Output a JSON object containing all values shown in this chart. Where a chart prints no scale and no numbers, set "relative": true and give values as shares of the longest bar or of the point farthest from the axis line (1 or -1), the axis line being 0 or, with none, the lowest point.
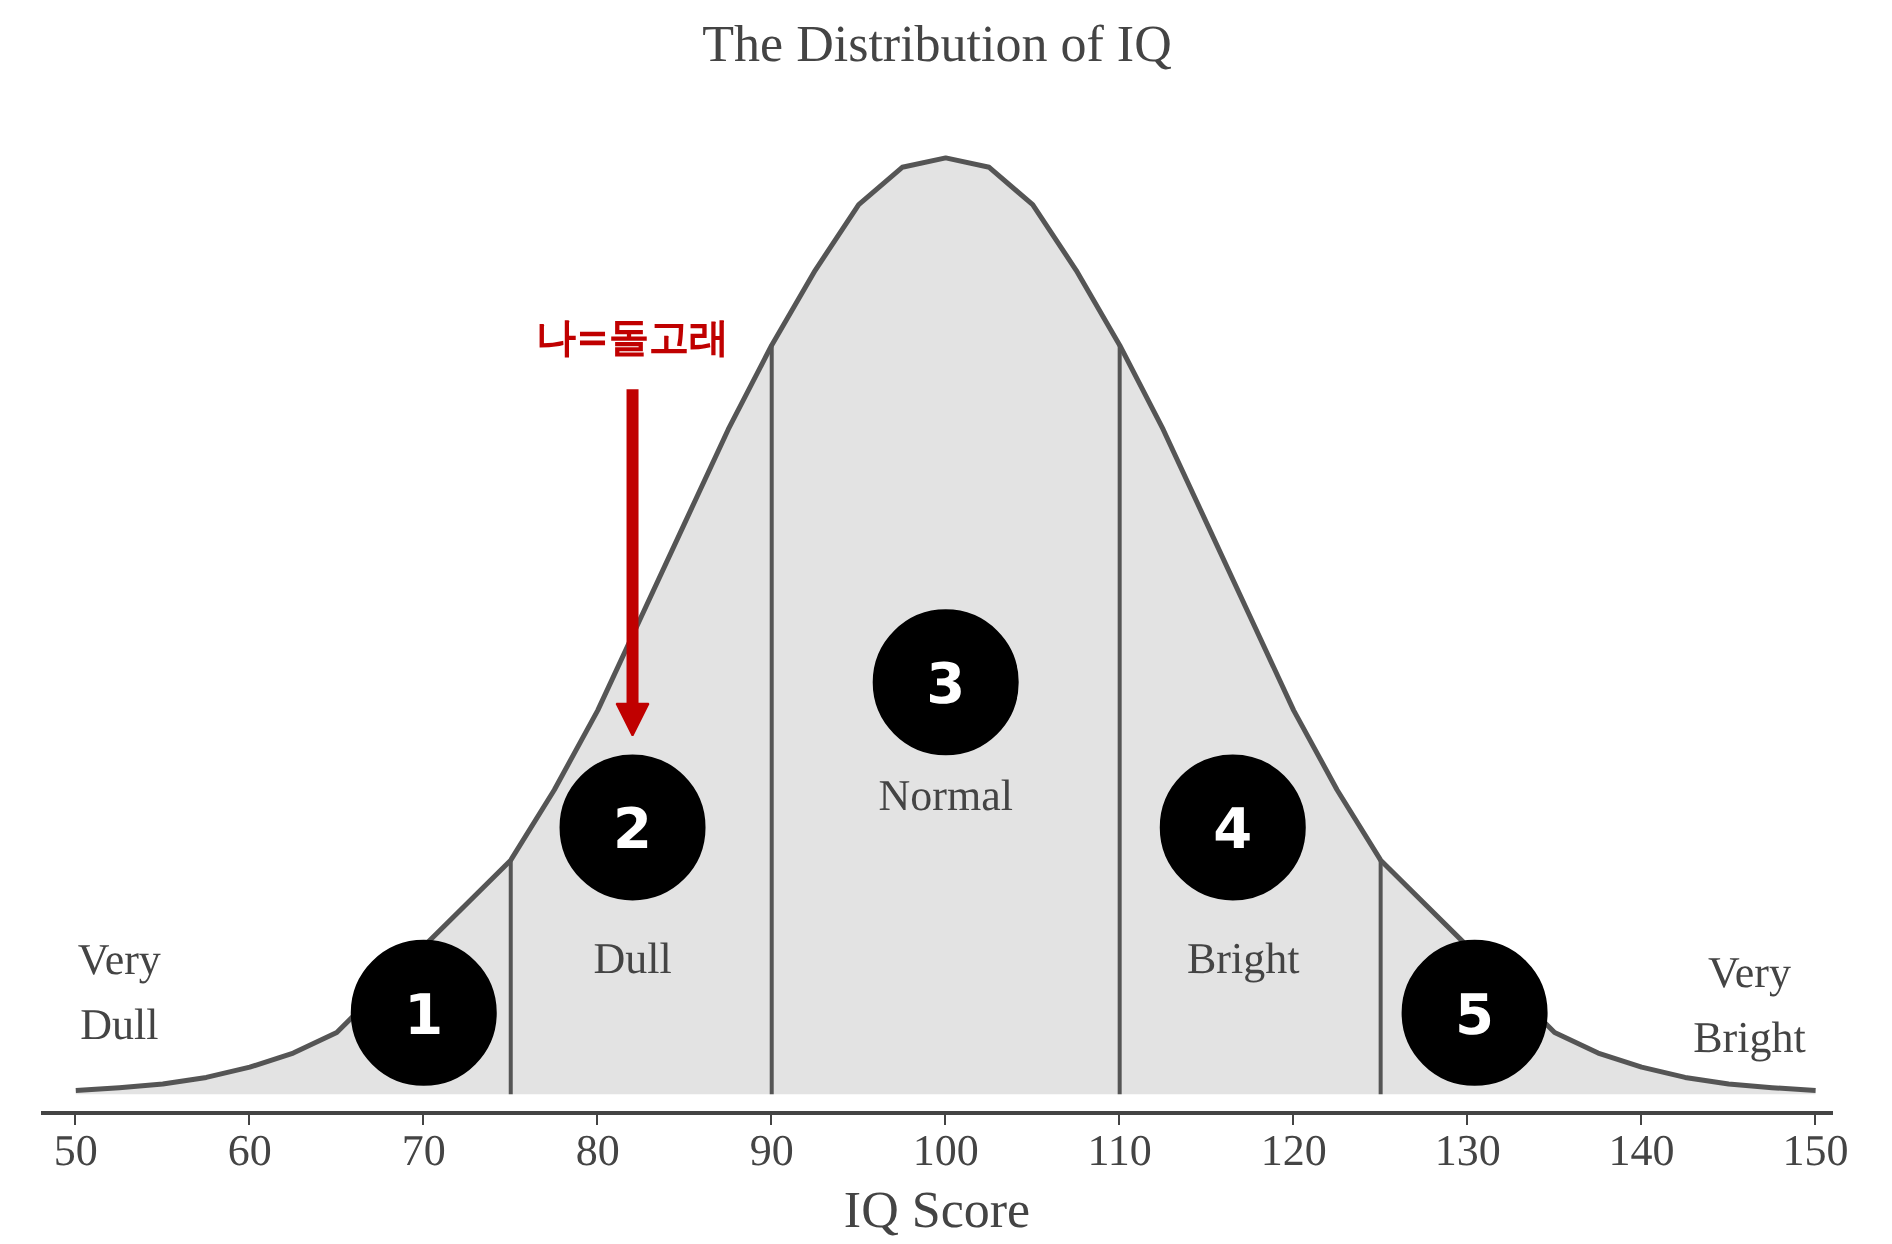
{
  "chart_data": {
    "type": "area",
    "title": "The Distribution of IQ",
    "xlabel": "IQ Score",
    "relative": true,
    "x": [
      50,
      52.5,
      55,
      57.5,
      60,
      62.5,
      65,
      75,
      77.5,
      80,
      82.5,
      85,
      87.5,
      90,
      92.5,
      95,
      97.5,
      100,
      102.5,
      105,
      107.5,
      110,
      112.5,
      115,
      117.5,
      120,
      122.5,
      125,
      135,
      137.5,
      140,
      142.5,
      145,
      147.5,
      150
    ],
    "series": [
      {
        "color": "#e3e3e3",
        "values": [
          0.004,
          0.007,
          0.011,
          0.018,
          0.029,
          0.044,
          0.066,
          0.25,
          0.325,
          0.41,
          0.51,
          0.61,
          0.71,
          0.8,
          0.88,
          0.95,
          0.99,
          1,
          0.99,
          0.95,
          0.88,
          0.8,
          0.71,
          0.61,
          0.51,
          0.41,
          0.325,
          0.25,
          0.066,
          0.044,
          0.029,
          0.018,
          0.011,
          0.007,
          0.004
        ]
      }
    ],
    "xlim": [
      48,
      151
    ],
    "xticks": [
      50,
      60,
      70,
      80,
      90,
      100,
      110,
      120,
      130,
      140,
      150
    ],
    "grid": false,
    "ref_lines": [
      {
        "axis": "x",
        "value": 75,
        "color": "#555555"
      },
      {
        "axis": "x",
        "value": 90,
        "color": "#555555"
      },
      {
        "axis": "x",
        "value": 110,
        "color": "#555555"
      },
      {
        "axis": "x",
        "value": 125,
        "color": "#555555"
      }
    ],
    "annotations": [
      "1",
      "2",
      "3",
      "4",
      "5",
      "나=돌고래",
      "Very\nDull",
      "Dull",
      "Normal",
      "Bright",
      "Very\nBright"
    ]
  }
}
